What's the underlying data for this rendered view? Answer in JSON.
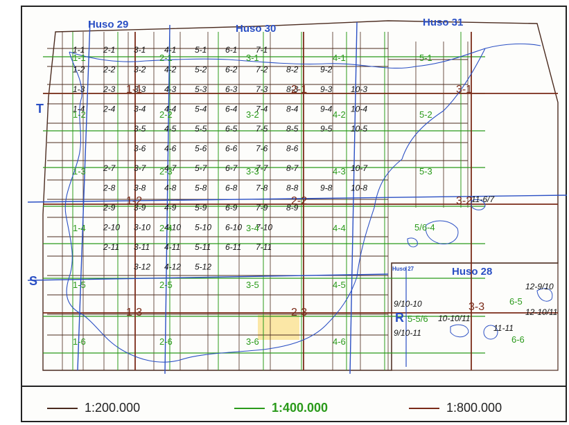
{
  "colors": {
    "grid200": "#4a2a1e",
    "grid400": "#2a9a1a",
    "grid800": "#7a2a18",
    "huso": "#2a4fc4",
    "coast": "#2a4fc4",
    "highlight": "#fbe7a6",
    "label_black": "#111111"
  },
  "zone_labels": [
    "Huso 29",
    "Huso 30",
    "Huso 31",
    "Huso 28",
    "Huso 27"
  ],
  "lat_labels": [
    "T",
    "S",
    "R"
  ],
  "sheets_200": [
    "1-1",
    "2-1",
    "3-1",
    "4-1",
    "5-1",
    "6-1",
    "7-1",
    "1-2",
    "2-2",
    "3-2",
    "4-2",
    "5-2",
    "6-2",
    "7-2",
    "8-2",
    "9-2",
    "1-3",
    "2-3",
    "3-3",
    "4-3",
    "5-3",
    "6-3",
    "7-3",
    "8-3",
    "9-3",
    "10-3",
    "1-4",
    "2-4",
    "3-4",
    "4-4",
    "5-4",
    "6-4",
    "7-4",
    "8-4",
    "9-4",
    "10-4",
    "3-5",
    "4-5",
    "5-5",
    "6-5",
    "7-5",
    "8-5",
    "9-5",
    "10-5",
    "3-6",
    "4-6",
    "5-6",
    "6-6",
    "7-6",
    "8-6",
    "11-6/7",
    "2-7",
    "3-7",
    "4-7",
    "5-7",
    "6-7",
    "7-7",
    "8-7",
    "10-7",
    "2-8",
    "3-8",
    "4-8",
    "5-8",
    "6-8",
    "7-8",
    "8-8",
    "9-8",
    "10-8",
    "2-9",
    "3-9",
    "4-9",
    "5-9",
    "6-9",
    "7-9",
    "8-9",
    "2-10",
    "3-10",
    "4-10",
    "5-10",
    "6-10",
    "7-10",
    "2-11",
    "3-11",
    "4-11",
    "5-11",
    "6-11",
    "7-11",
    "3-12",
    "4-12",
    "5-12",
    "12-9/10",
    "12-10/11",
    "9/10-10",
    "9/10-11",
    "10-10/11",
    "11-11"
  ],
  "sheets_400": [
    "1-1",
    "2-1",
    "3-1",
    "4-1",
    "5-1",
    "1-2",
    "2-2",
    "3-2",
    "4-2",
    "5-2",
    "1-3",
    "2-3",
    "3-3",
    "4-3",
    "5-3",
    "1-4",
    "2-4",
    "3-4",
    "4-4",
    "5/6-4",
    "1-5",
    "2-5",
    "3-5",
    "4-5",
    "1-6",
    "2-6",
    "3-6",
    "4-6",
    "5-5/6",
    "6-5",
    "6-6"
  ],
  "sheets_800": [
    "1-1",
    "2-1",
    "3-1",
    "1-2",
    "2-2",
    "3-2",
    "1-3",
    "2-3",
    "3-3"
  ],
  "highlighted_sheet": "6-11",
  "legend": [
    {
      "scale": "1:200.000",
      "color_key": "grid200"
    },
    {
      "scale": "1:400.000",
      "color_key": "grid400"
    },
    {
      "scale": "1:800.000",
      "color_key": "grid800"
    }
  ]
}
